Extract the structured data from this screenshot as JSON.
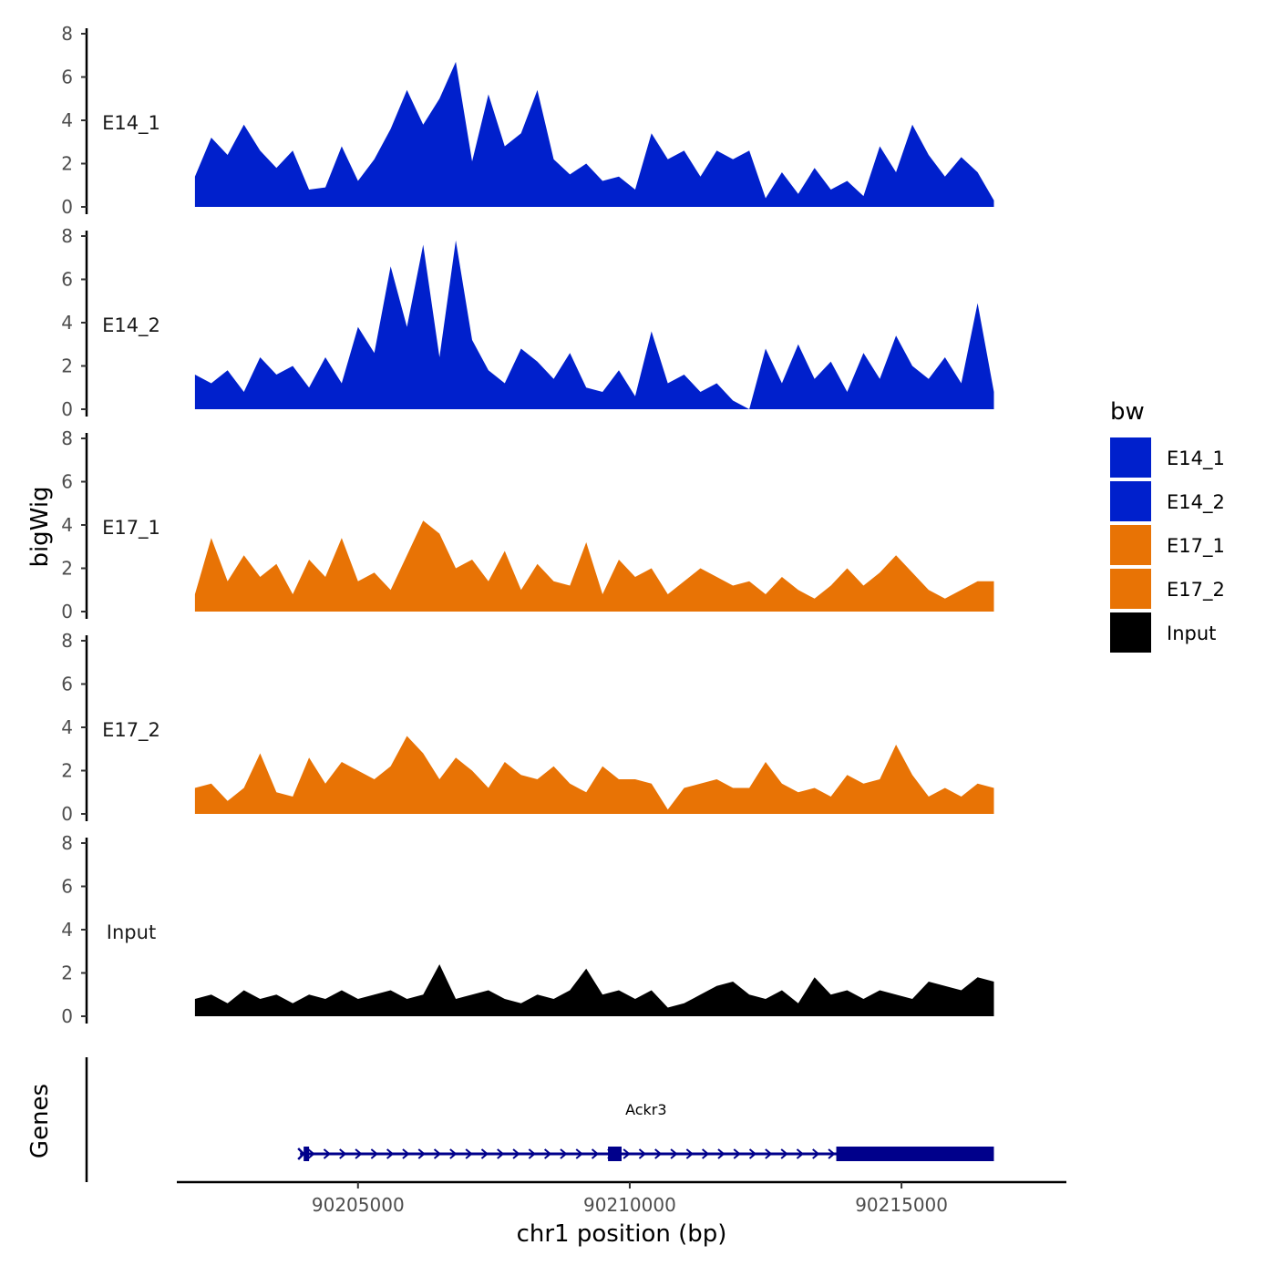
{
  "chart_data": {
    "type": "area",
    "title": "",
    "xlabel": "chr1 position (bp)",
    "ylabel": "bigWig",
    "genes_label": "Genes",
    "xlim": [
      90201700,
      90218000
    ],
    "ylim": [
      0,
      8
    ],
    "x_ticks": [
      90205000,
      90210000,
      90215000
    ],
    "x_tick_labels": [
      "90205000",
      "90210000",
      "90215000"
    ],
    "y_ticks": [
      0,
      2,
      4,
      6,
      8
    ],
    "y_tick_labels": [
      "0",
      "2",
      "4",
      "6",
      "8"
    ],
    "x": [
      90202000,
      90202300,
      90202600,
      90202900,
      90203200,
      90203500,
      90203800,
      90204100,
      90204400,
      90204700,
      90205000,
      90205300,
      90205600,
      90205900,
      90206200,
      90206500,
      90206800,
      90207100,
      90207400,
      90207700,
      90208000,
      90208300,
      90208600,
      90208900,
      90209200,
      90209500,
      90209800,
      90210100,
      90210400,
      90210700,
      90211000,
      90211300,
      90211600,
      90211900,
      90212200,
      90212500,
      90212800,
      90213100,
      90213400,
      90213700,
      90214000,
      90214300,
      90214600,
      90214900,
      90215200,
      90215500,
      90215800,
      90216100,
      90216400,
      90216700
    ],
    "series": [
      {
        "name": "E14_1",
        "color": "#0020CC",
        "values": [
          1.4,
          3.2,
          2.4,
          3.8,
          2.6,
          1.8,
          2.6,
          0.8,
          0.9,
          2.8,
          1.2,
          2.2,
          3.6,
          5.4,
          3.8,
          5.0,
          6.7,
          2.1,
          5.2,
          2.8,
          3.4,
          5.4,
          2.2,
          1.5,
          2.0,
          1.2,
          1.4,
          0.8,
          3.4,
          2.2,
          2.6,
          1.4,
          2.6,
          2.2,
          2.6,
          0.4,
          1.6,
          0.6,
          1.8,
          0.8,
          1.2,
          0.5,
          2.8,
          1.6,
          3.8,
          2.4,
          1.4,
          2.3,
          1.6,
          0.3
        ]
      },
      {
        "name": "E14_2",
        "color": "#0020CC",
        "values": [
          1.6,
          1.2,
          1.8,
          0.8,
          2.4,
          1.6,
          2.0,
          1.0,
          2.4,
          1.2,
          3.8,
          2.6,
          6.6,
          3.8,
          7.6,
          2.4,
          7.8,
          3.2,
          1.8,
          1.2,
          2.8,
          2.2,
          1.4,
          2.6,
          1.0,
          0.8,
          1.8,
          0.6,
          3.6,
          1.2,
          1.6,
          0.8,
          1.2,
          0.4,
          0.0,
          2.8,
          1.2,
          3.0,
          1.4,
          2.2,
          0.8,
          2.6,
          1.4,
          3.4,
          2.0,
          1.4,
          2.4,
          1.2,
          4.9,
          0.8
        ]
      },
      {
        "name": "E17_1",
        "color": "#E87305",
        "values": [
          0.8,
          3.4,
          1.4,
          2.6,
          1.6,
          2.2,
          0.8,
          2.4,
          1.6,
          3.4,
          1.4,
          1.8,
          1.0,
          2.6,
          4.2,
          3.6,
          2.0,
          2.4,
          1.4,
          2.8,
          1.0,
          2.2,
          1.4,
          1.2,
          3.2,
          0.8,
          2.4,
          1.6,
          2.0,
          0.8,
          1.4,
          2.0,
          1.6,
          1.2,
          1.4,
          0.8,
          1.6,
          1.0,
          0.6,
          1.2,
          2.0,
          1.2,
          1.8,
          2.6,
          1.8,
          1.0,
          0.6,
          1.0,
          1.4,
          1.4
        ]
      },
      {
        "name": "E17_2",
        "color": "#E87305",
        "values": [
          1.2,
          1.4,
          0.6,
          1.2,
          2.8,
          1.0,
          0.8,
          2.6,
          1.4,
          2.4,
          2.0,
          1.6,
          2.2,
          3.6,
          2.8,
          1.6,
          2.6,
          2.0,
          1.2,
          2.4,
          1.8,
          1.6,
          2.2,
          1.4,
          1.0,
          2.2,
          1.6,
          1.6,
          1.4,
          0.2,
          1.2,
          1.4,
          1.6,
          1.2,
          1.2,
          2.4,
          1.4,
          1.0,
          1.2,
          0.8,
          1.8,
          1.4,
          1.6,
          3.2,
          1.8,
          0.8,
          1.2,
          0.8,
          1.4,
          1.2
        ]
      },
      {
        "name": "Input",
        "color": "#000000",
        "values": [
          0.8,
          1.0,
          0.6,
          1.2,
          0.8,
          1.0,
          0.6,
          1.0,
          0.8,
          1.2,
          0.8,
          1.0,
          1.2,
          0.8,
          1.0,
          2.4,
          0.8,
          1.0,
          1.2,
          0.8,
          0.6,
          1.0,
          0.8,
          1.2,
          2.2,
          1.0,
          1.2,
          0.8,
          1.2,
          0.4,
          0.6,
          1.0,
          1.4,
          1.6,
          1.0,
          0.8,
          1.2,
          0.6,
          1.8,
          1.0,
          1.2,
          0.8,
          1.2,
          1.0,
          0.8,
          1.6,
          1.4,
          1.2,
          1.8,
          1.6
        ]
      }
    ],
    "legend": {
      "title": "bw",
      "position": "right",
      "entries": [
        {
          "label": "E14_1",
          "color": "#0020CC"
        },
        {
          "label": "E14_2",
          "color": "#0020CC"
        },
        {
          "label": "E17_1",
          "color": "#E87305"
        },
        {
          "label": "E17_2",
          "color": "#E87305"
        },
        {
          "label": "Input",
          "color": "#000000"
        }
      ]
    },
    "gene": {
      "name": "Ackr3",
      "start": 90204000,
      "end": 90216700,
      "strand": "+",
      "color": "#00008B",
      "exons": [
        [
          90204000,
          90204100
        ],
        [
          90209600,
          90209850
        ],
        [
          90213800,
          90216700
        ]
      ]
    }
  }
}
